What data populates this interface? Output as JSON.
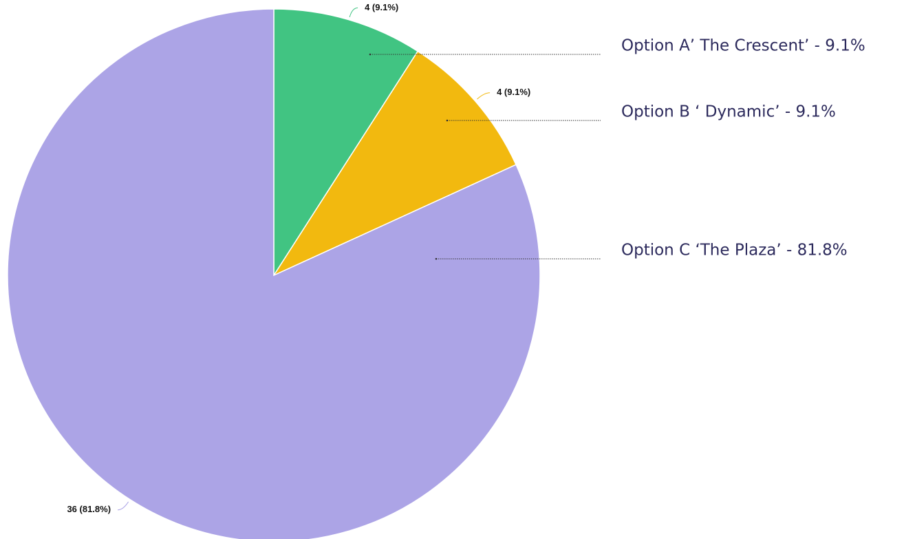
{
  "chart_data": {
    "type": "pie",
    "categories": [
      "Option A’ The Crescent’ - 9.1%",
      "Option B ‘ Dynamic’ - 9.1%",
      "Option C ‘The Plaza’ - 81.8%"
    ],
    "values": [
      4,
      4,
      36
    ],
    "value_labels": [
      "4 (9.1%)",
      "4 (9.1%)",
      "36 (81.8%)"
    ],
    "colors": [
      "#41c482",
      "#f2b90f",
      "#aca4e6"
    ]
  }
}
